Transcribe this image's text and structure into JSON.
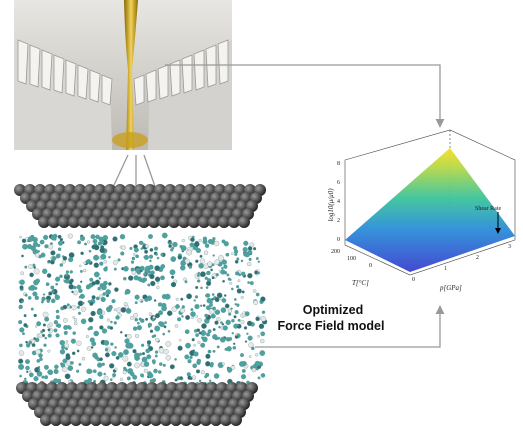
{
  "model_label": [
    "Optimized",
    "Force Field model"
  ],
  "plot": {
    "z_label": "log10(μ/μ0)",
    "x_label": "p[GPa]",
    "y_label": "T[°C]",
    "annotation": "Shear Rate",
    "x_ticks": [
      "0",
      "1",
      "2",
      "3"
    ],
    "y_ticks": [
      "200",
      "100",
      "0"
    ],
    "z_ticks": [
      "8",
      "6",
      "4",
      "2",
      "0"
    ]
  }
}
